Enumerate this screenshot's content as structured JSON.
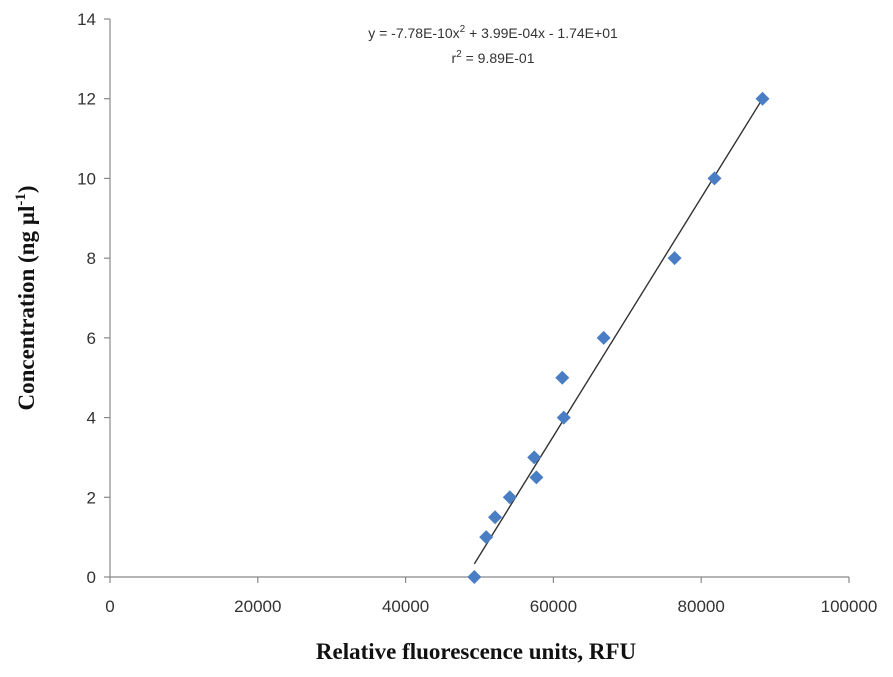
{
  "chart_data": {
    "type": "scatter",
    "title": "",
    "xlabel": "Relative fluorescence units, RFU",
    "ylabel_main": "Concentration (ng µl",
    "ylabel_sup": "-1",
    "ylabel_close": ")",
    "xlim": [
      0,
      100000
    ],
    "ylim": [
      0,
      14
    ],
    "x_ticks": [
      0,
      20000,
      40000,
      60000,
      80000,
      100000
    ],
    "y_ticks": [
      0,
      2,
      4,
      6,
      8,
      10,
      12,
      14
    ],
    "x_tick_labels": [
      "0",
      "20000",
      "40000",
      "60000",
      "80000",
      "100000"
    ],
    "y_tick_labels": [
      "0",
      "2",
      "4",
      "6",
      "8",
      "10",
      "12",
      "14"
    ],
    "grid": false,
    "marker": "diamond",
    "marker_color": "#4a7ec4",
    "line_color": "#333333",
    "series": [
      {
        "points": [
          {
            "x": 49300,
            "y": 0
          },
          {
            "x": 50900,
            "y": 1
          },
          {
            "x": 52100,
            "y": 1.5
          },
          {
            "x": 54100,
            "y": 2
          },
          {
            "x": 57400,
            "y": 3
          },
          {
            "x": 57700,
            "y": 2.5
          },
          {
            "x": 61200,
            "y": 5
          },
          {
            "x": 61400,
            "y": 4
          },
          {
            "x": 66800,
            "y": 6
          },
          {
            "x": 76400,
            "y": 8
          },
          {
            "x": 81800,
            "y": 10
          },
          {
            "x": 88300,
            "y": 12
          }
        ]
      }
    ],
    "trendline": {
      "type": "polynomial",
      "x_range": [
        49300,
        88300
      ],
      "y_range": [
        0.33,
        12.0
      ]
    },
    "annotations": {
      "eq_prefix": "y = -7.78E-10x",
      "eq_exp": "2",
      "eq_suffix": " + 3.99E-04x - 1.74E+01",
      "r2_prefix": "r",
      "r2_exp": "2",
      "r2_suffix": " = 9.89E-01"
    }
  }
}
